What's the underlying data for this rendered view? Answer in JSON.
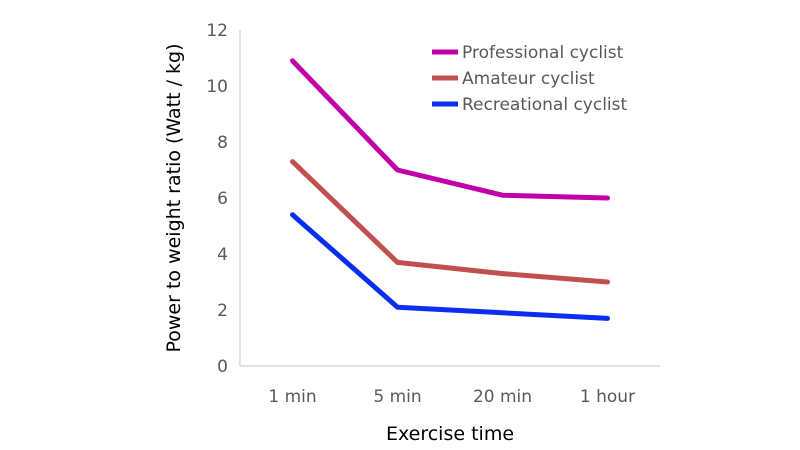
{
  "chart_data": {
    "type": "line",
    "title": "",
    "xlabel": "Exercise time",
    "ylabel": "Power to weight ratio (Watt / kg)",
    "categories": [
      "1 min",
      "5 min",
      "20 min",
      "1 hour"
    ],
    "ylim": [
      0,
      12
    ],
    "yticks": [
      0,
      2,
      4,
      6,
      8,
      10,
      12
    ],
    "grid": false,
    "legend_position": "top-right",
    "series": [
      {
        "name": "Professional cyclist",
        "color": "#c000a8",
        "values": [
          10.9,
          7.0,
          6.1,
          6.0
        ]
      },
      {
        "name": "Amateur cyclist",
        "color": "#c0504d",
        "values": [
          7.3,
          3.7,
          3.3,
          3.0
        ]
      },
      {
        "name": "Recreational cyclist",
        "color": "#0a2ef0",
        "values": [
          5.4,
          2.1,
          1.9,
          1.7
        ]
      }
    ]
  }
}
